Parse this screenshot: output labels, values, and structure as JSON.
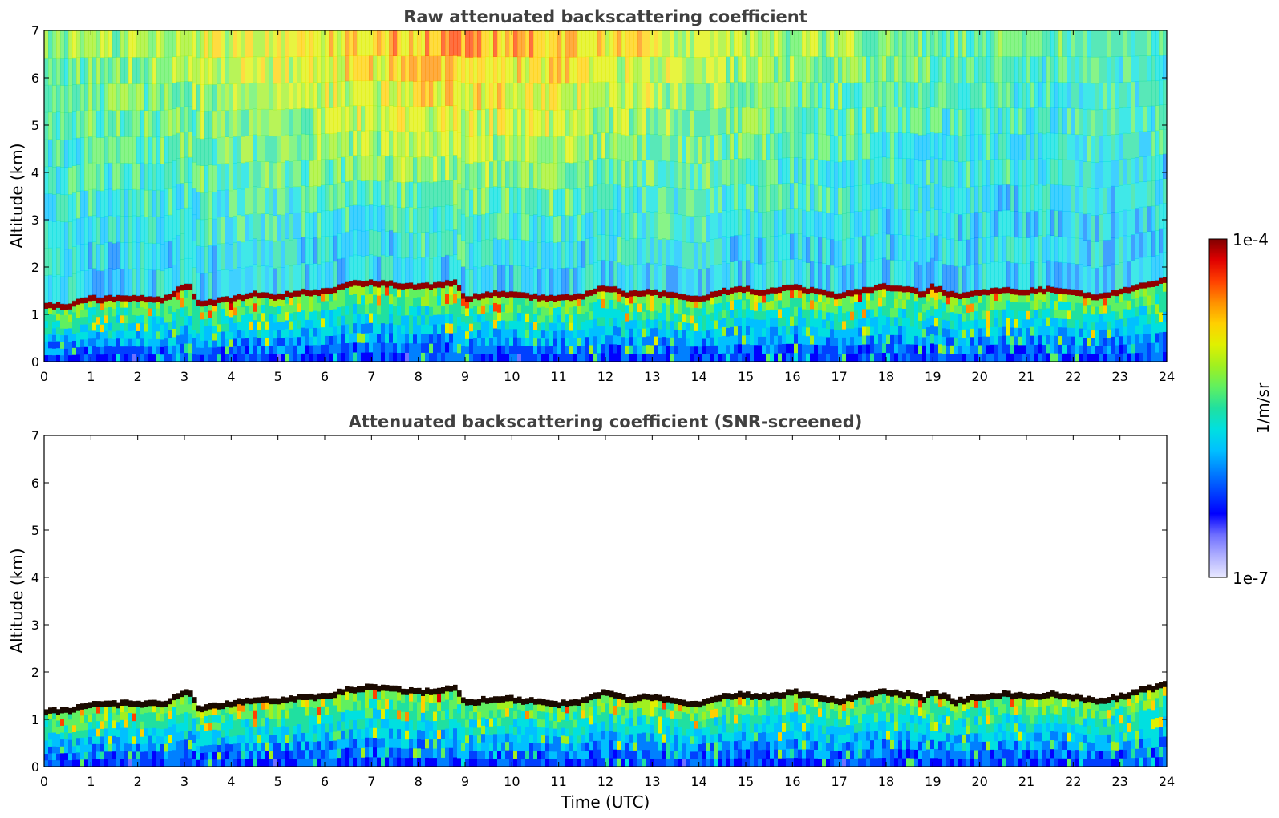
{
  "chart_data": [
    {
      "type": "heatmap",
      "title": "Raw attenuated backscattering coefficient",
      "xlabel": "",
      "ylabel": "Altitude (km)",
      "xlim": [
        0,
        24
      ],
      "ylim": [
        0,
        7
      ],
      "x_ticks": [
        0,
        1,
        2,
        3,
        4,
        5,
        6,
        7,
        8,
        9,
        10,
        11,
        12,
        13,
        14,
        15,
        16,
        17,
        18,
        19,
        20,
        21,
        22,
        23,
        24
      ],
      "y_ticks": [
        0,
        1,
        2,
        3,
        4,
        5,
        6,
        7
      ],
      "screened": false,
      "boundary_layer_top_km": {
        "time_utc": [
          0,
          0.5,
          1,
          2,
          2.6,
          2.8,
          3.1,
          3.3,
          4,
          4.5,
          5,
          5.5,
          6,
          6.5,
          7,
          7.5,
          8,
          8.5,
          8.8,
          9,
          9.5,
          10,
          10.5,
          11,
          11.5,
          12,
          12.5,
          13,
          13.5,
          14,
          14.5,
          15,
          15.3,
          15.5,
          16,
          16.5,
          17,
          17.5,
          18,
          18.5,
          18.8,
          19,
          19.5,
          20,
          20.5,
          21,
          21.5,
          22,
          22.5,
          23,
          23.5,
          24
        ],
        "altitude_km": [
          1.15,
          1.15,
          1.3,
          1.3,
          1.3,
          1.45,
          1.6,
          1.2,
          1.3,
          1.4,
          1.35,
          1.45,
          1.45,
          1.6,
          1.65,
          1.6,
          1.55,
          1.6,
          1.65,
          1.3,
          1.4,
          1.4,
          1.35,
          1.3,
          1.35,
          1.55,
          1.4,
          1.45,
          1.35,
          1.3,
          1.45,
          1.5,
          1.45,
          1.45,
          1.55,
          1.45,
          1.35,
          1.5,
          1.55,
          1.5,
          1.4,
          1.55,
          1.35,
          1.45,
          1.5,
          1.45,
          1.5,
          1.45,
          1.35,
          1.45,
          1.6,
          1.7
        ]
      }
    },
    {
      "type": "heatmap",
      "title": "Attenuated backscattering coefficient (SNR-screened)",
      "xlabel": "Time (UTC)",
      "ylabel": "Altitude (km)",
      "xlim": [
        0,
        24
      ],
      "ylim": [
        0,
        7
      ],
      "x_ticks": [
        0,
        1,
        2,
        3,
        4,
        5,
        6,
        7,
        8,
        9,
        10,
        11,
        12,
        13,
        14,
        15,
        16,
        17,
        18,
        19,
        20,
        21,
        22,
        23,
        24
      ],
      "y_ticks": [
        0,
        1,
        2,
        3,
        4,
        5,
        6,
        7
      ],
      "screened": true,
      "boundary_layer_top_km": {
        "time_utc": [
          0,
          0.5,
          1,
          2,
          2.6,
          2.8,
          3.1,
          3.3,
          4,
          4.5,
          5,
          5.5,
          6,
          6.5,
          7,
          7.5,
          8,
          8.5,
          8.8,
          9,
          9.5,
          10,
          10.5,
          11,
          11.5,
          12,
          12.5,
          13,
          13.5,
          14,
          14.5,
          15,
          15.3,
          15.5,
          16,
          16.5,
          17,
          17.5,
          18,
          18.5,
          18.8,
          19,
          19.5,
          20,
          20.5,
          21,
          21.5,
          22,
          22.5,
          23,
          23.5,
          24
        ],
        "altitude_km": [
          1.15,
          1.15,
          1.3,
          1.3,
          1.3,
          1.45,
          1.6,
          1.2,
          1.3,
          1.4,
          1.35,
          1.45,
          1.45,
          1.6,
          1.65,
          1.6,
          1.55,
          1.6,
          1.65,
          1.3,
          1.4,
          1.4,
          1.35,
          1.3,
          1.35,
          1.55,
          1.4,
          1.45,
          1.35,
          1.3,
          1.45,
          1.5,
          1.45,
          1.45,
          1.55,
          1.45,
          1.35,
          1.5,
          1.55,
          1.5,
          1.4,
          1.55,
          1.35,
          1.45,
          1.5,
          1.45,
          1.5,
          1.45,
          1.35,
          1.45,
          1.6,
          1.7
        ]
      }
    }
  ],
  "colorbar": {
    "min_label": "1e-7",
    "max_label": "1e-4",
    "unit_label": "1/m/sr",
    "scale": "log",
    "colors": [
      "#e8e8ff",
      "#b0b0ff",
      "#7070ff",
      "#0000ff",
      "#0040ff",
      "#0080ff",
      "#00c0ff",
      "#00e0e0",
      "#20e0a0",
      "#60f060",
      "#a0f020",
      "#e0f000",
      "#ffd000",
      "#ff9000",
      "#ff4000",
      "#e00000",
      "#800000"
    ]
  }
}
